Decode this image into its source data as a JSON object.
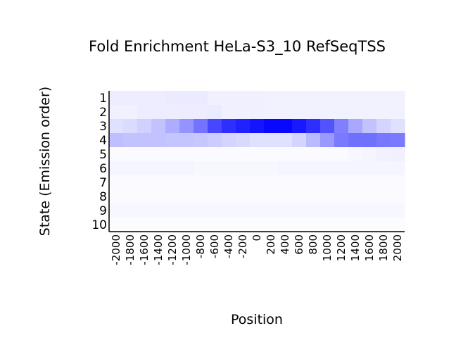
{
  "chart_data": {
    "type": "heatmap",
    "title": "Fold Enrichment HeLa-S3_10 RefSeqTSS",
    "xlabel": "Position",
    "ylabel": "State (Emission order)",
    "x_categories": [
      "-2000",
      "-1800",
      "-1600",
      "-1400",
      "-1200",
      "-1000",
      "-800",
      "-600",
      "-400",
      "-200",
      "0",
      "200",
      "400",
      "600",
      "800",
      "1000",
      "1200",
      "1400",
      "1600",
      "1800",
      "2000"
    ],
    "y_categories": [
      "1",
      "2",
      "3",
      "4",
      "5",
      "6",
      "7",
      "8",
      "9",
      "10"
    ],
    "color_min": "#ffffff",
    "color_max": "#0000ff",
    "value_range": [
      0,
      1
    ],
    "values": [
      [
        0.07,
        0.07,
        0.07,
        0.07,
        0.08,
        0.08,
        0.08,
        0.06,
        0.06,
        0.06,
        0.06,
        0.05,
        0.05,
        0.05,
        0.05,
        0.05,
        0.05,
        0.05,
        0.05,
        0.05,
        0.05
      ],
      [
        0.06,
        0.06,
        0.07,
        0.07,
        0.07,
        0.07,
        0.07,
        0.08,
        0.06,
        0.06,
        0.06,
        0.05,
        0.05,
        0.05,
        0.05,
        0.05,
        0.05,
        0.05,
        0.05,
        0.05,
        0.05
      ],
      [
        0.12,
        0.14,
        0.18,
        0.24,
        0.32,
        0.42,
        0.55,
        0.72,
        0.82,
        0.87,
        0.92,
        0.97,
        0.97,
        0.9,
        0.82,
        0.68,
        0.5,
        0.34,
        0.24,
        0.17,
        0.12
      ],
      [
        0.25,
        0.24,
        0.24,
        0.24,
        0.23,
        0.23,
        0.22,
        0.2,
        0.17,
        0.15,
        0.12,
        0.12,
        0.12,
        0.17,
        0.27,
        0.4,
        0.52,
        0.56,
        0.56,
        0.53,
        0.52
      ],
      [
        0.02,
        0.02,
        0.02,
        0.02,
        0.02,
        0.02,
        0.02,
        0.02,
        0.02,
        0.02,
        0.02,
        0.02,
        0.02,
        0.02,
        0.02,
        0.02,
        0.02,
        0.03,
        0.04,
        0.05,
        0.06
      ],
      [
        0.04,
        0.04,
        0.04,
        0.04,
        0.04,
        0.04,
        0.03,
        0.03,
        0.03,
        0.03,
        0.03,
        0.03,
        0.04,
        0.04,
        0.04,
        0.04,
        0.04,
        0.04,
        0.04,
        0.04,
        0.04
      ],
      [
        0.02,
        0.02,
        0.02,
        0.02,
        0.02,
        0.02,
        0.02,
        0.02,
        0.02,
        0.02,
        0.02,
        0.02,
        0.02,
        0.02,
        0.02,
        0.02,
        0.02,
        0.02,
        0.02,
        0.02,
        0.02
      ],
      [
        0.02,
        0.02,
        0.02,
        0.02,
        0.02,
        0.02,
        0.02,
        0.02,
        0.02,
        0.02,
        0.02,
        0.02,
        0.02,
        0.02,
        0.02,
        0.02,
        0.02,
        0.02,
        0.02,
        0.02,
        0.02
      ],
      [
        0.03,
        0.03,
        0.03,
        0.03,
        0.03,
        0.03,
        0.03,
        0.03,
        0.03,
        0.03,
        0.03,
        0.03,
        0.03,
        0.03,
        0.03,
        0.03,
        0.03,
        0.03,
        0.03,
        0.03,
        0.03
      ],
      [
        0.01,
        0.01,
        0.01,
        0.01,
        0.01,
        0.01,
        0.01,
        0.01,
        0.01,
        0.01,
        0.01,
        0.01,
        0.01,
        0.01,
        0.01,
        0.01,
        0.01,
        0.01,
        0.01,
        0.01,
        0.01
      ]
    ],
    "grid": false,
    "legend": "none"
  }
}
